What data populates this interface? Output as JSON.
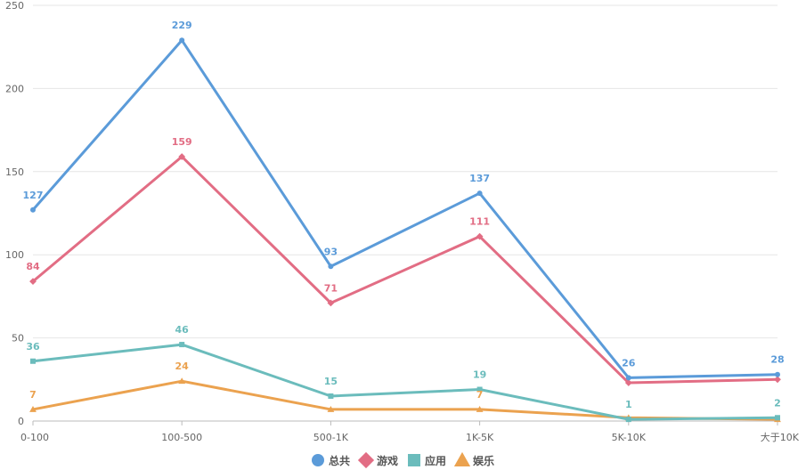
{
  "chart_data": {
    "type": "line",
    "categories": [
      "0-100",
      "100-500",
      "500-1K",
      "1K-5K",
      "5K-10K",
      "大于10K"
    ],
    "ylim": [
      0,
      250
    ],
    "yticks": [
      0,
      50,
      100,
      150,
      200,
      250
    ],
    "grid": true,
    "legend_placement": "bottom-center",
    "series": [
      {
        "name": "总共",
        "color": "#5b9bd9",
        "marker": "circle",
        "values": [
          127,
          229,
          93,
          137,
          26,
          28
        ]
      },
      {
        "name": "游戏",
        "color": "#e26d84",
        "marker": "diamond",
        "values": [
          84,
          159,
          71,
          111,
          23,
          25
        ]
      },
      {
        "name": "应用",
        "color": "#6bbcbc",
        "marker": "square",
        "values": [
          36,
          46,
          15,
          19,
          1,
          2
        ]
      },
      {
        "name": "娱乐",
        "color": "#eba24f",
        "marker": "triangle",
        "values": [
          7,
          24,
          7,
          7,
          2,
          1
        ]
      }
    ],
    "data_labels": {
      "总共": [
        "127",
        "229",
        "93",
        "137",
        "26",
        "28"
      ],
      "游戏": [
        "84",
        "159",
        "71",
        "111",
        "",
        ""
      ],
      "应用": [
        "36",
        "46",
        "15",
        "19",
        "1",
        "2"
      ],
      "娱乐": [
        "7",
        "24",
        "",
        "7",
        "",
        ""
      ]
    }
  }
}
